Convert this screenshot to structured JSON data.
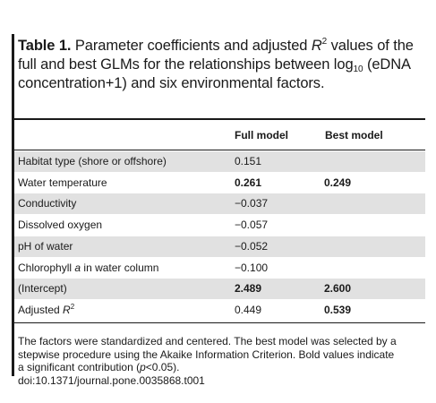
{
  "caption": {
    "bold_prefix": "Table 1.",
    "line1": " Parameter coefficients and adjusted ",
    "r": "R",
    "r_sup": "2",
    "line1_end": " values of the",
    "line2": "full and best GLMs for the relationships between log",
    "log_sub": "10",
    "line2_end": " (eDNA",
    "line3": "concentration+1) and six environmental factors."
  },
  "table": {
    "headers": [
      "",
      "Full model",
      "Best model"
    ],
    "rows": [
      {
        "label": "Habitat type (shore or offshore)",
        "full": "0.151",
        "best": "",
        "full_bold": false,
        "best_bold": false
      },
      {
        "label": "Water temperature",
        "full": "0.261",
        "best": "0.249",
        "full_bold": true,
        "best_bold": true
      },
      {
        "label": "Conductivity",
        "full": "−0.037",
        "best": "",
        "full_bold": false,
        "best_bold": false
      },
      {
        "label": "Dissolved oxygen",
        "full": "−0.057",
        "best": "",
        "full_bold": false,
        "best_bold": false
      },
      {
        "label": "pH of water",
        "full": "−0.052",
        "best": "",
        "full_bold": false,
        "best_bold": false
      },
      {
        "label": "Chlorophyll a in water column",
        "full": "−0.100",
        "best": "",
        "full_bold": false,
        "best_bold": false
      },
      {
        "label": "(Intercept)",
        "full": "2.489",
        "best": "2.600",
        "full_bold": true,
        "best_bold": true
      },
      {
        "label": "Adjusted R2",
        "full": "0.449",
        "best": "0.539",
        "full_bold": false,
        "best_bold": true
      }
    ]
  },
  "footnote": {
    "line1": "The factors were standardized and centered. The best model was selected by a",
    "line2": "stepwise procedure using the Akaike Information Criterion. Bold values indicate",
    "line3": "a significant contribution (p<0.05).",
    "doi": "doi:10.1371/journal.pone.0035868.t001"
  }
}
